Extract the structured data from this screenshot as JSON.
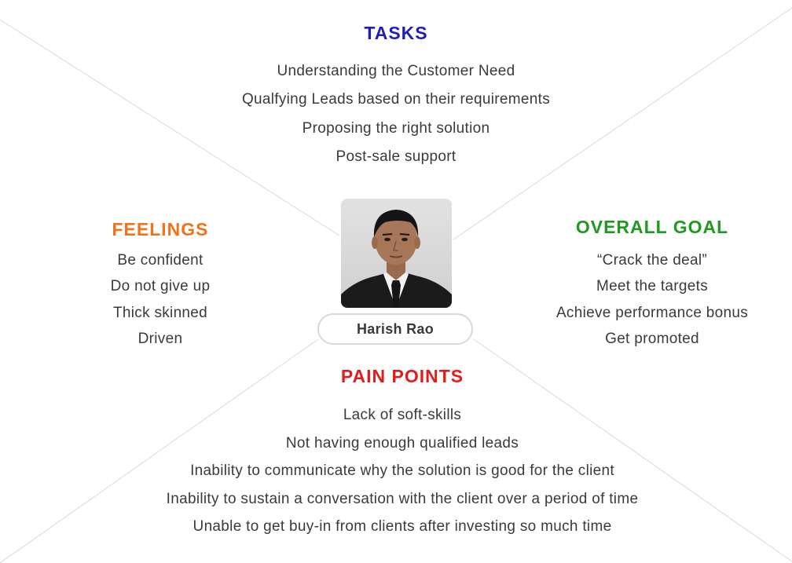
{
  "persona": {
    "name": "Harish Rao"
  },
  "tasks": {
    "title": "TASKS",
    "color": "#1f1fb8",
    "items": [
      "Understanding the Customer Need",
      "Qualfying Leads based on their requirements",
      "Proposing the right solution",
      "Post-sale support"
    ]
  },
  "feelings": {
    "title": "FEELINGS",
    "color": "#f0731c",
    "items": [
      "Be confident",
      "Do not give up",
      "Thick skinned",
      "Driven"
    ]
  },
  "overall_goal": {
    "title": "OVERALL GOAL",
    "color": "#1e9a1e",
    "items": [
      "“Crack the deal”",
      "Meet the targets",
      "Achieve performance bonus",
      "Get promoted"
    ]
  },
  "pain_points": {
    "title": "PAIN POINTS",
    "color": "#e41b1b",
    "items": [
      "Lack of soft-skills",
      "Not having enough qualified leads",
      "Inability to communicate why the solution is good for the client",
      "Inability to sustain a conversation with the client over a period of time",
      "Unable to get buy-in from clients after investing so much time"
    ]
  }
}
